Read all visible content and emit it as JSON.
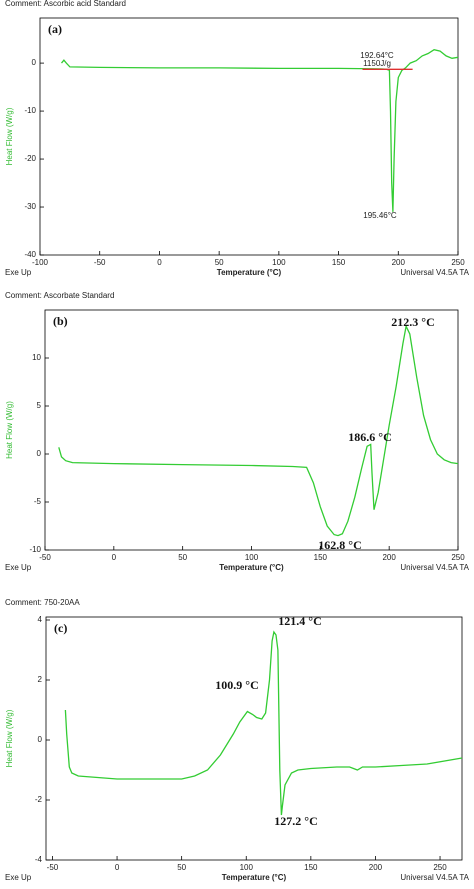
{
  "chart_data": [
    {
      "type": "line",
      "title": "Comment: Ascorbic acid Standard",
      "label": "(a)",
      "xlabel": "Temperature (°C)",
      "ylabel": "Heat Flow (W/g)",
      "footer_left": "Exe Up",
      "footer_right": "Universal V4.5A TA",
      "xlim": [
        -100,
        250
      ],
      "ylim": [
        -40,
        9.4
      ],
      "xticks": [
        -100,
        -50,
        0,
        50,
        100,
        150,
        200,
        250
      ],
      "yticks": [
        -40,
        -30,
        -20,
        -10,
        0
      ],
      "annotations": [
        "192.64°C",
        "1150J/g",
        "195.46°C"
      ],
      "series": [
        {
          "color": "#33cc33",
          "x": [
            -82,
            -80,
            -78,
            -75,
            -50,
            0,
            50,
            100,
            150,
            185,
            190,
            192.6,
            193.5,
            194.5,
            195.46,
            196.5,
            198,
            200,
            203,
            206,
            210,
            215,
            220,
            225,
            230,
            235,
            240,
            245,
            250
          ],
          "values": [
            0,
            0.6,
            0,
            -0.8,
            -0.9,
            -1,
            -1,
            -1.1,
            -1.1,
            -1.2,
            -1.3,
            -1.5,
            -10,
            -25,
            -31,
            -20,
            -8,
            -3,
            -1.5,
            -1,
            0,
            0.5,
            1.5,
            2,
            2.8,
            2.5,
            1.5,
            1.0,
            1.2
          ]
        },
        {
          "color": "#e03030",
          "x": [
            170,
            212
          ],
          "values": [
            -1.3,
            -1.3
          ]
        }
      ]
    },
    {
      "type": "line",
      "title": "Comment: Ascorbate Standard",
      "label": "(b)",
      "xlabel": "Temperature (°C)",
      "ylabel": "Heat Flow (W/g)",
      "footer_left": "Exe Up",
      "footer_right": "Universal V4.5A TA",
      "xlim": [
        -50,
        250
      ],
      "ylim": [
        -10,
        15
      ],
      "xticks": [
        -50,
        0,
        50,
        100,
        150,
        200,
        250
      ],
      "yticks": [
        -10,
        -5,
        0,
        5,
        10
      ],
      "annotations": [
        "212.3 °C",
        "186.6 °C",
        "162.8 °C"
      ],
      "series": [
        {
          "color": "#33cc33",
          "x": [
            -40,
            -38,
            -35,
            -30,
            0,
            50,
            100,
            130,
            140,
            145,
            150,
            155,
            160,
            162.8,
            166,
            170,
            175,
            180,
            184,
            186.6,
            187.5,
            189,
            192,
            196,
            200,
            205,
            210,
            212.3,
            215,
            220,
            225,
            230,
            235,
            240,
            245,
            250
          ],
          "values": [
            0.7,
            -0.3,
            -0.7,
            -0.9,
            -1.0,
            -1.1,
            -1.2,
            -1.3,
            -1.4,
            -3,
            -5.5,
            -7.5,
            -8.4,
            -8.5,
            -8.3,
            -7,
            -4.5,
            -1.5,
            0.8,
            1.0,
            -2,
            -5.8,
            -4,
            -0.5,
            3,
            7,
            11.5,
            13.3,
            12.5,
            8,
            4,
            1.5,
            0,
            -0.6,
            -0.9,
            -1.0
          ]
        }
      ]
    },
    {
      "type": "line",
      "title": "Comment: 750-20AA",
      "label": "(c)",
      "xlabel": "Temperature (°C)",
      "ylabel": "Heat Flow (W/g)",
      "footer_left": "Exe Up",
      "footer_right": "Universal V4.5A TA",
      "xlim": [
        -55,
        267
      ],
      "ylim": [
        -4,
        4.1
      ],
      "xticks": [
        -50,
        0,
        50,
        100,
        150,
        200,
        250
      ],
      "yticks": [
        -4,
        -2,
        0,
        2,
        4
      ],
      "annotations": [
        "121.4 °C",
        "100.9 °C",
        "127.2 °C"
      ],
      "series": [
        {
          "color": "#33cc33",
          "x": [
            -40,
            -39,
            -37,
            -35,
            -30,
            0,
            50,
            60,
            70,
            80,
            90,
            95,
            100.9,
            105,
            108,
            112,
            115,
            118,
            120,
            121.4,
            123,
            124.5,
            126,
            127.2,
            128,
            130,
            135,
            140,
            150,
            170,
            180,
            183,
            186,
            190,
            200,
            220,
            240,
            267
          ],
          "values": [
            1.0,
            0.2,
            -0.9,
            -1.1,
            -1.2,
            -1.3,
            -1.3,
            -1.2,
            -1.0,
            -0.5,
            0.2,
            0.6,
            0.95,
            0.85,
            0.75,
            0.7,
            0.9,
            2.0,
            3.3,
            3.6,
            3.5,
            3.0,
            -1.0,
            -2.5,
            -2.2,
            -1.5,
            -1.1,
            -1.0,
            -0.95,
            -0.9,
            -0.9,
            -0.95,
            -1.0,
            -0.9,
            -0.9,
            -0.85,
            -0.8,
            -0.6
          ]
        }
      ]
    }
  ]
}
